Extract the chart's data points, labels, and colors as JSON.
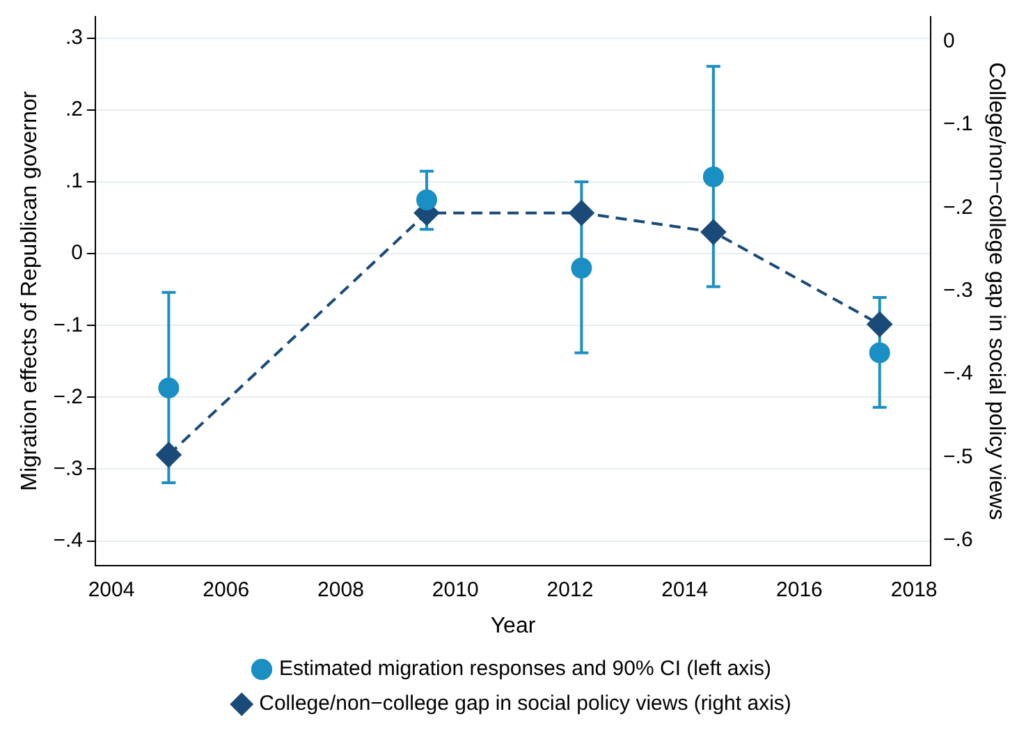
{
  "chart_data": {
    "type": "scatter",
    "xlabel": "Year",
    "ylabel": "Migration effects of Republican governor",
    "y2label": "College/non−college gap in social policy views",
    "x": [
      2005,
      2009.5,
      2012.2,
      2014.5,
      2017.4
    ],
    "series": [
      {
        "name": "Estimated migration responses and 90% CI (left axis)",
        "color": "#1a8fc4",
        "marker": "circle",
        "values": [
          -0.187,
          0.075,
          -0.02,
          0.107,
          -0.138
        ],
        "errors": [
          [
            -0.319,
            -0.054
          ],
          [
            0.034,
            0.115
          ],
          [
            -0.138,
            0.1
          ],
          [
            -0.046,
            0.261
          ],
          [
            -0.214,
            -0.061
          ]
        ]
      },
      {
        "name": "College/non−college gap in social policy views (right axis)",
        "type": "line",
        "axis": "y2",
        "color": "#1a4a78",
        "marker": "diamond",
        "line_style": "dashed",
        "values": [
          -0.497,
          -0.206,
          -0.206,
          -0.229,
          -0.34
        ]
      }
    ],
    "xlim": [
      2003.72,
      2018.29
    ],
    "xticks": [
      2004,
      2006,
      2008,
      2010,
      2012,
      2014,
      2016,
      2018
    ],
    "ylim": [
      -0.434,
      0.33
    ],
    "yticks": [
      {
        "value": -0.4,
        "label": "−.4"
      },
      {
        "value": -0.3,
        "label": "−.3"
      },
      {
        "value": -0.2,
        "label": "−.2"
      },
      {
        "value": -0.1,
        "label": "−.1"
      },
      0,
      {
        "value": 0.1,
        "label": ".1"
      },
      {
        "value": 0.2,
        "label": ".2"
      },
      {
        "value": 0.3,
        "label": ".3"
      }
    ],
    "y2lim": [
      -0.63,
      0.03
    ],
    "y2ticks": [
      {
        "value": -0.6,
        "label": "−.6"
      },
      {
        "value": -0.5,
        "label": "−.5"
      },
      {
        "value": -0.4,
        "label": "−.4"
      },
      {
        "value": -0.3,
        "label": "−.3"
      },
      {
        "value": -0.2,
        "label": "−.2"
      },
      {
        "value": -0.1,
        "label": "−.1"
      },
      0
    ],
    "grid": "y",
    "legend": "bottom"
  }
}
